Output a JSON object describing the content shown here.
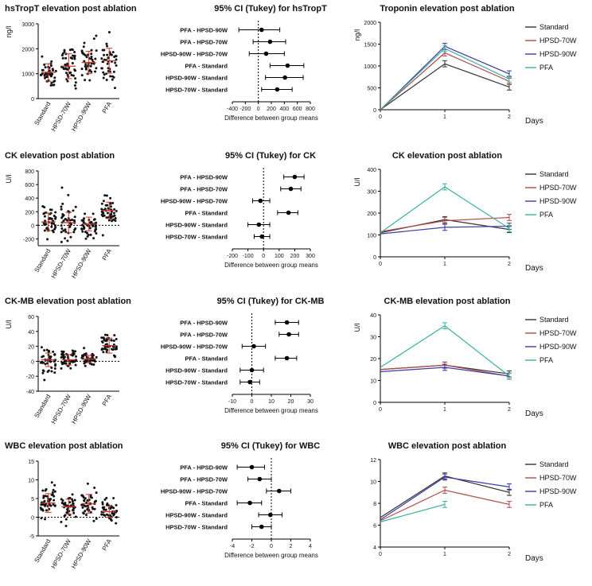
{
  "chart_data": [
    {
      "type": "scatter",
      "title": "hsTropT elevation post ablation",
      "ylabel": "ng/l",
      "ylim": [
        0,
        3000
      ],
      "yticks": [
        "0",
        "1000",
        "2000",
        "3000"
      ],
      "categories": [
        "Standard",
        "HPSD-70W",
        "HPSD-90W",
        "PFA"
      ],
      "means": [
        1050,
        1300,
        1450,
        1520
      ],
      "sd": [
        350,
        500,
        450,
        500
      ]
    },
    {
      "type": "forest",
      "title": "95% CI (Tukey) for hsTropT",
      "xlabel": "Difference between group means",
      "xlim": [
        -400,
        800
      ],
      "xticks": [
        "-400",
        "-200",
        "0",
        "200",
        "400",
        "600",
        "800"
      ],
      "rows": [
        {
          "label": "PFA - HPSD-90W",
          "est": 50,
          "lo": -300,
          "hi": 330
        },
        {
          "label": "PFA - HPSD-70W",
          "est": 180,
          "lo": -80,
          "hi": 420
        },
        {
          "label": "HPSD-90W - HPSD-70W",
          "est": 120,
          "lo": -140,
          "hi": 400
        },
        {
          "label": "PFA - Standard",
          "est": 450,
          "lo": 180,
          "hi": 700
        },
        {
          "label": "HPSD-90W - Standard",
          "est": 410,
          "lo": 110,
          "hi": 690
        },
        {
          "label": "HPSD-70W - Standard",
          "est": 290,
          "lo": 50,
          "hi": 520
        }
      ]
    },
    {
      "type": "line",
      "title": "Troponin elevation post ablation",
      "ylabel": "ng/l",
      "xlabel": "Days",
      "x": [
        0,
        1,
        2
      ],
      "xlim": [
        0,
        2
      ],
      "ylim": [
        0,
        2000
      ],
      "yticks": [
        "0",
        "500",
        "1000",
        "1500",
        "2000"
      ],
      "legend": [
        "Standard",
        "HPSD-70W",
        "HPSD-90W",
        "PFA"
      ],
      "series": [
        {
          "name": "Standard",
          "values": [
            0,
            1050,
            520
          ]
        },
        {
          "name": "HPSD-70W",
          "values": [
            0,
            1300,
            650
          ]
        },
        {
          "name": "HPSD-90W",
          "values": [
            0,
            1450,
            820
          ]
        },
        {
          "name": "PFA",
          "values": [
            0,
            1400,
            700
          ]
        }
      ]
    },
    {
      "type": "scatter",
      "title": "CK elevation post ablation",
      "ylabel": "U/l",
      "ylim": [
        -300,
        800
      ],
      "yticks": [
        "-200",
        "0",
        "200",
        "400",
        "600",
        "800"
      ],
      "categories": [
        "Standard",
        "HPSD-70W",
        "HPSD-90W",
        "PFA"
      ],
      "means": [
        50,
        40,
        20,
        220
      ],
      "sd": [
        130,
        150,
        100,
        120
      ]
    },
    {
      "type": "forest",
      "title": "95% CI (Tukey) for CK",
      "xlabel": "Difference between group means",
      "xlim": [
        -200,
        300
      ],
      "xticks": [
        "-200",
        "-100",
        "0",
        "100",
        "200",
        "300"
      ],
      "rows": [
        {
          "label": "PFA - HPSD-90W",
          "est": 200,
          "lo": 130,
          "hi": 260
        },
        {
          "label": "PFA - HPSD-70W",
          "est": 175,
          "lo": 110,
          "hi": 240
        },
        {
          "label": "HPSD-90W - HPSD-70W",
          "est": -20,
          "lo": -70,
          "hi": 40
        },
        {
          "label": "PFA - Standard",
          "est": 160,
          "lo": 90,
          "hi": 220
        },
        {
          "label": "HPSD-90W - Standard",
          "est": -30,
          "lo": -100,
          "hi": 40
        },
        {
          "label": "HPSD-70W - Standard",
          "est": -10,
          "lo": -60,
          "hi": 40
        }
      ]
    },
    {
      "type": "line",
      "title": "CK elevation post ablation",
      "ylabel": "U/l",
      "xlabel": "Days",
      "x": [
        0,
        1,
        2
      ],
      "xlim": [
        0,
        2
      ],
      "ylim": [
        0,
        400
      ],
      "yticks": [
        "0",
        "100",
        "200",
        "300",
        "400"
      ],
      "legend": [
        "Standard",
        "HPSD-70W",
        "HPSD-90W",
        "PFA"
      ],
      "series": [
        {
          "name": "Standard",
          "values": [
            110,
            170,
            125
          ]
        },
        {
          "name": "HPSD-70W",
          "values": [
            115,
            165,
            180
          ]
        },
        {
          "name": "HPSD-90W",
          "values": [
            105,
            135,
            140
          ]
        },
        {
          "name": "PFA",
          "values": [
            110,
            320,
            130
          ]
        }
      ]
    },
    {
      "type": "scatter",
      "title": "CK-MB elevation post ablation",
      "ylabel": "U/l",
      "ylim": [
        -40,
        60
      ],
      "yticks": [
        "-40",
        "-20",
        "0",
        "20",
        "40",
        "60"
      ],
      "categories": [
        "Standard",
        "HPSD-70W",
        "HPSD-90W",
        "PFA"
      ],
      "means": [
        2,
        2,
        3,
        21
      ],
      "sd": [
        9,
        7,
        5,
        10
      ]
    },
    {
      "type": "forest",
      "title": "95% CI (Tukey) for CK-MB",
      "xlabel": "Difference between group means",
      "xlim": [
        -10,
        30
      ],
      "xticks": [
        "-10",
        "0",
        "10",
        "20",
        "30"
      ],
      "rows": [
        {
          "label": "PFA - HPSD-90W",
          "est": 18,
          "lo": 12,
          "hi": 24
        },
        {
          "label": "PFA - HPSD-70W",
          "est": 19,
          "lo": 14,
          "hi": 24
        },
        {
          "label": "HPSD-90W - HPSD-70W",
          "est": 1,
          "lo": -5,
          "hi": 7
        },
        {
          "label": "PFA - Standard",
          "est": 18,
          "lo": 12,
          "hi": 23
        },
        {
          "label": "HPSD-90W - Standard",
          "est": 0,
          "lo": -6,
          "hi": 6
        },
        {
          "label": "HPSD-70W - Standard",
          "est": -1,
          "lo": -6,
          "hi": 4
        }
      ]
    },
    {
      "type": "line",
      "title": "CK-MB elevation post ablation",
      "ylabel": "U/l",
      "xlabel": "Days",
      "x": [
        0,
        1,
        2
      ],
      "xlim": [
        0,
        2
      ],
      "ylim": [
        0,
        40
      ],
      "yticks": [
        "0",
        "10",
        "20",
        "30",
        "40"
      ],
      "legend": [
        "Standard",
        "HPSD-70W",
        "HPSD-90W",
        "PFA"
      ],
      "series": [
        {
          "name": "Standard",
          "values": [
            15,
            17,
            13
          ]
        },
        {
          "name": "HPSD-70W",
          "values": [
            15,
            17,
            12
          ]
        },
        {
          "name": "HPSD-90W",
          "values": [
            14,
            16,
            12
          ]
        },
        {
          "name": "PFA",
          "values": [
            16,
            35,
            12
          ]
        }
      ]
    },
    {
      "type": "scatter",
      "title": "WBC elevation post ablation",
      "ylim": [
        -5,
        15
      ],
      "yticks": [
        "-5",
        "0",
        "5",
        "10",
        "15"
      ],
      "categories": [
        "Standard",
        "HPSD-70W",
        "HPSD-90W",
        "PFA"
      ],
      "means": [
        3.8,
        2.8,
        3.6,
        1.5
      ],
      "sd": [
        2.5,
        2,
        2.5,
        1.5
      ]
    },
    {
      "type": "forest",
      "title": "95% CI (Tukey) for WBC",
      "xlabel": "Difference between group means",
      "xlim": [
        -4,
        4
      ],
      "xticks": [
        "-4",
        "-2",
        "0",
        "2",
        "4"
      ],
      "rows": [
        {
          "label": "PFA - HPSD-90W",
          "est": -2,
          "lo": -3.5,
          "hi": -0.7
        },
        {
          "label": "PFA - HPSD-70W",
          "est": -1.2,
          "lo": -2.4,
          "hi": 0
        },
        {
          "label": "HPSD-90W - HPSD-70W",
          "est": 0.8,
          "lo": -0.5,
          "hi": 2
        },
        {
          "label": "PFA - Standard",
          "est": -2.2,
          "lo": -3.5,
          "hi": -1
        },
        {
          "label": "HPSD-90W - Standard",
          "est": -0.1,
          "lo": -1.3,
          "hi": 1.1
        },
        {
          "label": "HPSD-70W - Standard",
          "est": -1,
          "lo": -2,
          "hi": 0
        }
      ]
    },
    {
      "type": "line",
      "title": "WBC elevation post ablation",
      "xlabel": "Days",
      "x": [
        0,
        1,
        2
      ],
      "xlim": [
        0,
        2
      ],
      "ylim": [
        4,
        12
      ],
      "yticks": [
        "4",
        "6",
        "8",
        "10",
        "12"
      ],
      "legend": [
        "Standard",
        "HPSD-70W",
        "HPSD-90W",
        "PFA"
      ],
      "series": [
        {
          "name": "Standard",
          "values": [
            6.7,
            10.5,
            9.0
          ]
        },
        {
          "name": "HPSD-70W",
          "values": [
            6.4,
            9.2,
            7.9
          ]
        },
        {
          "name": "HPSD-90W",
          "values": [
            6.5,
            10.4,
            9.5
          ]
        },
        {
          "name": "PFA",
          "values": [
            6.3,
            7.9,
            null
          ]
        }
      ]
    }
  ],
  "colors": {
    "Standard": "#333333",
    "HPSD-70W": "#b04a4a",
    "HPSD-90W": "#3a3aa8",
    "PFA": "#3ab0a0",
    "scatter_mean": "#c0392b"
  }
}
